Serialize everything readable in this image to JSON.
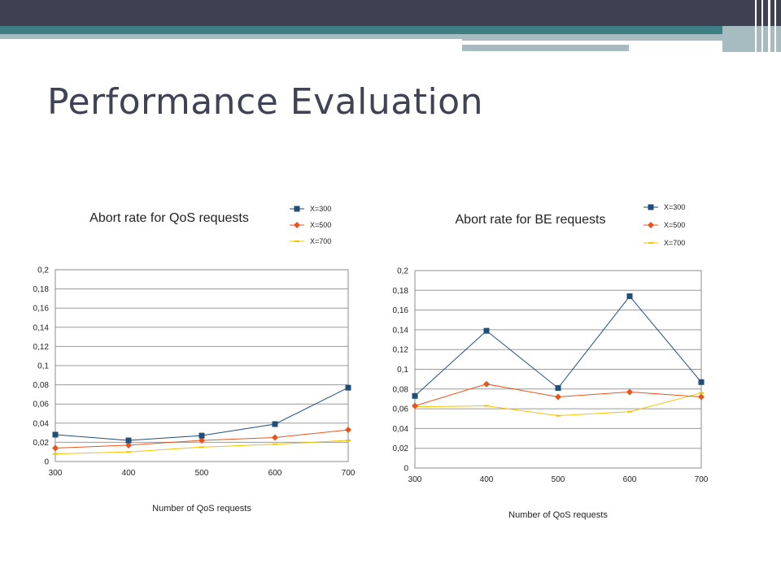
{
  "slide": {
    "title": "Performance Evaluation",
    "colors": {
      "title": "#404353",
      "banner_dark": "#3f4152",
      "banner_teal": "#3e7f86",
      "banner_light": "#a7bcc0"
    }
  },
  "chart_data": [
    {
      "type": "line",
      "title": "Abort rate for QoS requests",
      "xlabel": "Number of QoS requests",
      "ylabel": "",
      "x": [
        300,
        400,
        500,
        600,
        700
      ],
      "x_tick_labels": [
        "300",
        "400",
        "500",
        "600",
        "700"
      ],
      "ylim": [
        0,
        0.2
      ],
      "y_tick_labels": [
        "0",
        "0,02",
        "0,04",
        "0,06",
        "0,08",
        "0,1",
        "0,12",
        "0,14",
        "0,16",
        "0,18",
        "0,2"
      ],
      "grid": true,
      "legend_position": "top-right",
      "series": [
        {
          "name": "X=300",
          "color": "#1f4e79",
          "marker": "square",
          "values": [
            0.028,
            0.022,
            0.027,
            0.039,
            0.077
          ]
        },
        {
          "name": "X=500",
          "color": "#e8541c",
          "marker": "diamond",
          "values": [
            0.014,
            0.017,
            0.022,
            0.025,
            0.033
          ]
        },
        {
          "name": "X=700",
          "color": "#f2c400",
          "marker": "dash",
          "values": [
            0.008,
            0.01,
            0.015,
            0.018,
            0.022
          ]
        }
      ]
    },
    {
      "type": "line",
      "title": "Abort rate for BE requests",
      "xlabel": "Number of QoS requests",
      "ylabel": "",
      "x": [
        300,
        400,
        500,
        600,
        700
      ],
      "x_tick_labels": [
        "300",
        "400",
        "500",
        "600",
        "700"
      ],
      "ylim": [
        0,
        0.2
      ],
      "y_tick_labels": [
        "0",
        "0,02",
        "0,04",
        "0,06",
        "0,08",
        "0,1",
        "0,12",
        "0,14",
        "0,16",
        "0,18",
        "0,2"
      ],
      "grid": true,
      "legend_position": "top-right",
      "series": [
        {
          "name": "X=300",
          "color": "#1f4e79",
          "marker": "square",
          "values": [
            0.073,
            0.139,
            0.081,
            0.174,
            0.087
          ]
        },
        {
          "name": "X=500",
          "color": "#e8541c",
          "marker": "diamond",
          "values": [
            0.063,
            0.085,
            0.072,
            0.077,
            0.072
          ]
        },
        {
          "name": "X=700",
          "color": "#f2c400",
          "marker": "dash",
          "values": [
            0.062,
            0.063,
            0.053,
            0.057,
            0.076
          ]
        }
      ]
    }
  ]
}
